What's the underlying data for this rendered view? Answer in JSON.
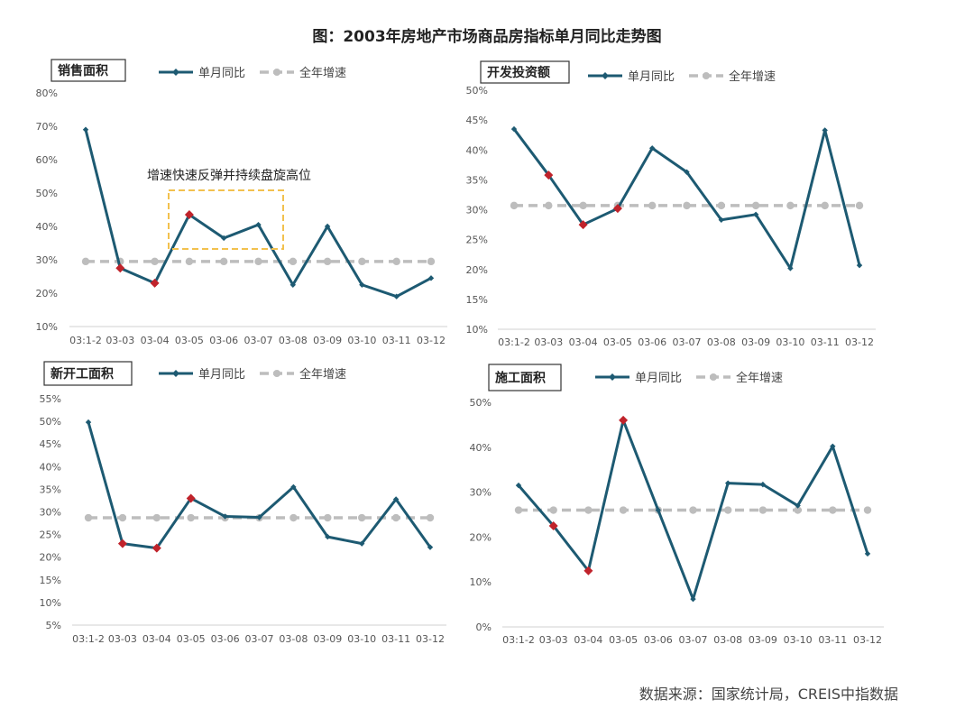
{
  "title": "图：2003年房地产市场商品房指标单月同比走势图",
  "source": "数据来源：国家统计局，CREIS中指数据",
  "legend": {
    "monthly": "单月同比",
    "annual": "全年增速"
  },
  "colors": {
    "line": "#1d5a72",
    "dash": "#bdbdbd",
    "highlight": "#c0232b",
    "annotation_box": "#f2c14e"
  },
  "chart_data": [
    {
      "type": "line",
      "title": "销售面积",
      "categories": [
        "03:1-2",
        "03-03",
        "03-04",
        "03-05",
        "03-06",
        "03-07",
        "03-08",
        "03-09",
        "03-10",
        "03-11",
        "03-12"
      ],
      "series": [
        {
          "name": "单月同比",
          "values": [
            69,
            27.5,
            23,
            43.5,
            36.5,
            40.5,
            22.5,
            40,
            22.5,
            19,
            24.5
          ],
          "highlight_indices": [
            1,
            2,
            3
          ]
        },
        {
          "name": "全年增速",
          "values": [
            29.5,
            29.5,
            29.5,
            29.5,
            29.5,
            29.5,
            29.5,
            29.5,
            29.5,
            29.5,
            29.5
          ]
        }
      ],
      "ylim": [
        10,
        80
      ],
      "yticks": [
        "10%",
        "20%",
        "30%",
        "40%",
        "50%",
        "60%",
        "70%",
        "80%"
      ],
      "annotation": "增速快速反弹并持续盘旋高位"
    },
    {
      "type": "line",
      "title": "开发投资额",
      "categories": [
        "03:1-2",
        "03-03",
        "03-04",
        "03-05",
        "03-06",
        "03-07",
        "03-08",
        "03-09",
        "03-10",
        "03-11",
        "03-12"
      ],
      "series": [
        {
          "name": "单月同比",
          "values": [
            43.5,
            35.8,
            27.5,
            30.2,
            40.3,
            36.3,
            28.3,
            29.2,
            20.2,
            43.3,
            20.7
          ],
          "highlight_indices": [
            1,
            2,
            3
          ]
        },
        {
          "name": "全年增速",
          "values": [
            30.7,
            30.7,
            30.7,
            30.7,
            30.7,
            30.7,
            30.7,
            30.7,
            30.7,
            30.7,
            30.7
          ]
        }
      ],
      "ylim": [
        10,
        50
      ],
      "yticks": [
        "10%",
        "15%",
        "20%",
        "25%",
        "30%",
        "35%",
        "40%",
        "45%",
        "50%"
      ]
    },
    {
      "type": "line",
      "title": "新开工面积",
      "categories": [
        "03:1-2",
        "03-03",
        "03-04",
        "03-05",
        "03-06",
        "03-07",
        "03-08",
        "03-09",
        "03-10",
        "03-11",
        "03-12"
      ],
      "series": [
        {
          "name": "单月同比",
          "values": [
            49.8,
            23,
            22,
            33,
            29,
            28.8,
            35.5,
            24.5,
            23,
            32.8,
            22.2
          ],
          "highlight_indices": [
            1,
            2,
            3
          ]
        },
        {
          "name": "全年增速",
          "values": [
            28.7,
            28.7,
            28.7,
            28.7,
            28.7,
            28.7,
            28.7,
            28.7,
            28.7,
            28.7,
            28.7
          ]
        }
      ],
      "ylim": [
        5,
        55
      ],
      "yticks": [
        "5%",
        "10%",
        "15%",
        "20%",
        "25%",
        "30%",
        "35%",
        "40%",
        "45%",
        "50%",
        "55%"
      ]
    },
    {
      "type": "line",
      "title": "施工面积",
      "categories": [
        "03:1-2",
        "03-03",
        "03-04",
        "03-05",
        "03-06",
        "03-07",
        "03-08",
        "03-09",
        "03-10",
        "03-11",
        "03-12"
      ],
      "series": [
        {
          "name": "单月同比",
          "values": [
            31.5,
            22.5,
            12.5,
            46,
            26,
            6.2,
            32,
            31.7,
            27,
            40.2,
            16.3
          ],
          "highlight_indices": [
            1,
            2,
            3
          ]
        },
        {
          "name": "全年增速",
          "values": [
            26,
            26,
            26,
            26,
            26,
            26,
            26,
            26,
            26,
            26,
            26
          ]
        }
      ],
      "ylim": [
        0,
        50
      ],
      "yticks": [
        "0%",
        "10%",
        "20%",
        "30%",
        "40%",
        "50%"
      ]
    }
  ]
}
